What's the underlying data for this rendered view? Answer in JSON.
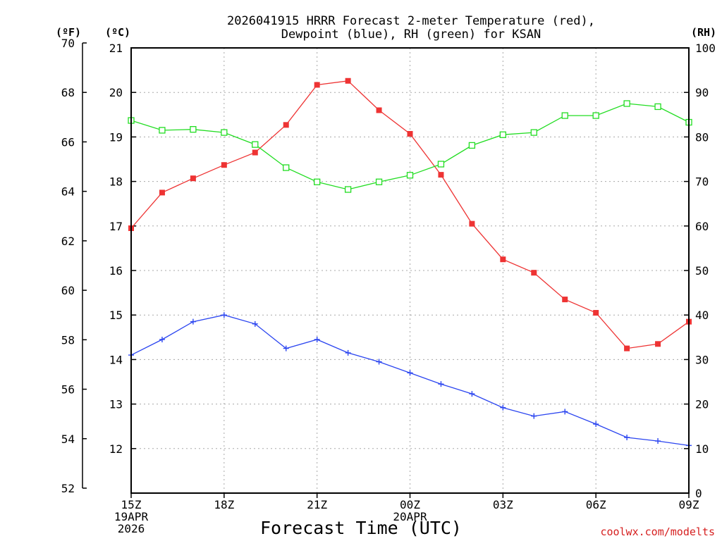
{
  "chart_data": {
    "type": "line",
    "title": [
      "2026041915 HRRR Forecast 2-meter Temperature (red),",
      "Dewpoint (blue), RH (green) for KSAN"
    ],
    "xlabel": "Forecast Time (UTC)",
    "credit": "coolwx.com/modelts",
    "units": {
      "fahrenheit": "(ºF)",
      "celsius": "(ºC)",
      "rh": "(RH)"
    },
    "x_count": 19,
    "x_ticks": [
      {
        "i": 0,
        "lines": [
          "15Z",
          "19APR",
          "2026"
        ]
      },
      {
        "i": 3,
        "lines": [
          "18Z"
        ]
      },
      {
        "i": 6,
        "lines": [
          "21Z"
        ]
      },
      {
        "i": 9,
        "lines": [
          "00Z",
          "20APR"
        ]
      },
      {
        "i": 12,
        "lines": [
          "03Z"
        ]
      },
      {
        "i": 15,
        "lines": [
          "06Z"
        ]
      },
      {
        "i": 18,
        "lines": [
          "09Z"
        ]
      }
    ],
    "celsius_range": [
      11,
      21
    ],
    "celsius_ticks": [
      "12",
      "13",
      "14",
      "15",
      "16",
      "17",
      "18",
      "19",
      "20",
      "21"
    ],
    "fahrenheit_ticks": [
      "52",
      "54",
      "56",
      "58",
      "60",
      "62",
      "64",
      "66",
      "68",
      "70"
    ],
    "rh_range": [
      0,
      100
    ],
    "rh_ticks": [
      "0",
      "10",
      "20",
      "30",
      "40",
      "50",
      "60",
      "70",
      "80",
      "90",
      "100"
    ],
    "series": [
      {
        "name": "Temperature",
        "axis": "celsius",
        "color": "#ee3333",
        "marker": "filled-square",
        "values": [
          16.95,
          17.75,
          18.07,
          18.37,
          18.65,
          19.27,
          20.17,
          20.26,
          19.6,
          19.07,
          18.15,
          17.05,
          16.25,
          15.95,
          15.35,
          15.05,
          14.25,
          14.35,
          14.85
        ]
      },
      {
        "name": "Dewpoint",
        "axis": "celsius",
        "color": "#2b45f0",
        "marker": "plus",
        "values": [
          14.1,
          14.45,
          14.85,
          15.0,
          14.8,
          14.25,
          14.45,
          14.15,
          13.95,
          13.7,
          13.45,
          13.23,
          12.92,
          12.73,
          12.83,
          12.55,
          12.25,
          12.17,
          12.07
        ]
      },
      {
        "name": "RH",
        "axis": "rh",
        "color": "#22dd22",
        "marker": "open-square",
        "values": [
          83.7,
          81.5,
          81.7,
          81.0,
          78.3,
          73.1,
          69.9,
          68.2,
          69.9,
          71.4,
          73.9,
          78.1,
          80.5,
          81.0,
          84.8,
          84.8,
          87.5,
          86.8,
          83.3
        ]
      }
    ]
  }
}
